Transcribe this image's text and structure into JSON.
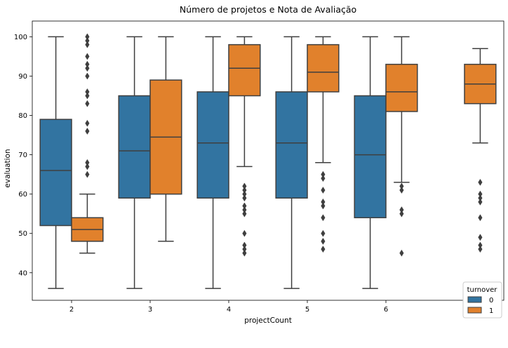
{
  "chart_data": {
    "type": "box",
    "title": "Número de projetos e Nota de Avaliação",
    "xlabel": "projectCount",
    "ylabel": "evaluation",
    "categories": [
      "2",
      "3",
      "4",
      "5",
      "6",
      "7"
    ],
    "ylim": [
      33,
      104
    ],
    "yticks": [
      40,
      50,
      60,
      70,
      80,
      90,
      100
    ],
    "grid": false,
    "legend": {
      "title": "turnover",
      "placement": "bottom-right"
    },
    "series": [
      {
        "name": "0",
        "color": "#3274a1",
        "boxes": [
          {
            "category": "2",
            "whislo": 36,
            "q1": 52,
            "median": 66,
            "q3": 79,
            "whishi": 100,
            "fliers": []
          },
          {
            "category": "3",
            "whislo": 36,
            "q1": 59,
            "median": 71,
            "q3": 85,
            "whishi": 100,
            "fliers": []
          },
          {
            "category": "4",
            "whislo": 36,
            "q1": 59,
            "median": 73,
            "q3": 86,
            "whishi": 100,
            "fliers": []
          },
          {
            "category": "5",
            "whislo": 36,
            "q1": 59,
            "median": 73,
            "q3": 86,
            "whishi": 100,
            "fliers": []
          },
          {
            "category": "6",
            "whislo": 36,
            "q1": 54,
            "median": 70,
            "q3": 85,
            "whishi": 100,
            "fliers": []
          }
        ]
      },
      {
        "name": "1",
        "color": "#e1812c",
        "boxes": [
          {
            "category": "2",
            "whislo": 45,
            "q1": 48,
            "median": 51,
            "q3": 54,
            "whishi": 60,
            "fliers": [
              65,
              67,
              68,
              76,
              78,
              83,
              85,
              86,
              90,
              92,
              93,
              95,
              98,
              99,
              100
            ]
          },
          {
            "category": "3",
            "whislo": 48,
            "q1": 60,
            "median": 74.5,
            "q3": 89,
            "whishi": 100,
            "fliers": []
          },
          {
            "category": "4",
            "whislo": 67,
            "q1": 85,
            "median": 92,
            "q3": 98,
            "whishi": 100,
            "fliers": [
              45,
              46,
              47,
              50,
              55,
              56,
              57,
              59,
              60,
              61,
              62
            ]
          },
          {
            "category": "5",
            "whislo": 68,
            "q1": 86,
            "median": 91,
            "q3": 98,
            "whishi": 100,
            "fliers": [
              46,
              48,
              50,
              54,
              57,
              58,
              61,
              64,
              65
            ]
          },
          {
            "category": "6",
            "whislo": 63,
            "q1": 81,
            "median": 86,
            "q3": 93,
            "whishi": 100,
            "fliers": [
              45,
              55,
              56,
              61,
              62
            ]
          },
          {
            "category": "7",
            "whislo": 73,
            "q1": 83,
            "median": 88,
            "q3": 93,
            "whishi": 97,
            "fliers": [
              46,
              47,
              49,
              54,
              58,
              59,
              60,
              63
            ]
          }
        ]
      }
    ]
  }
}
